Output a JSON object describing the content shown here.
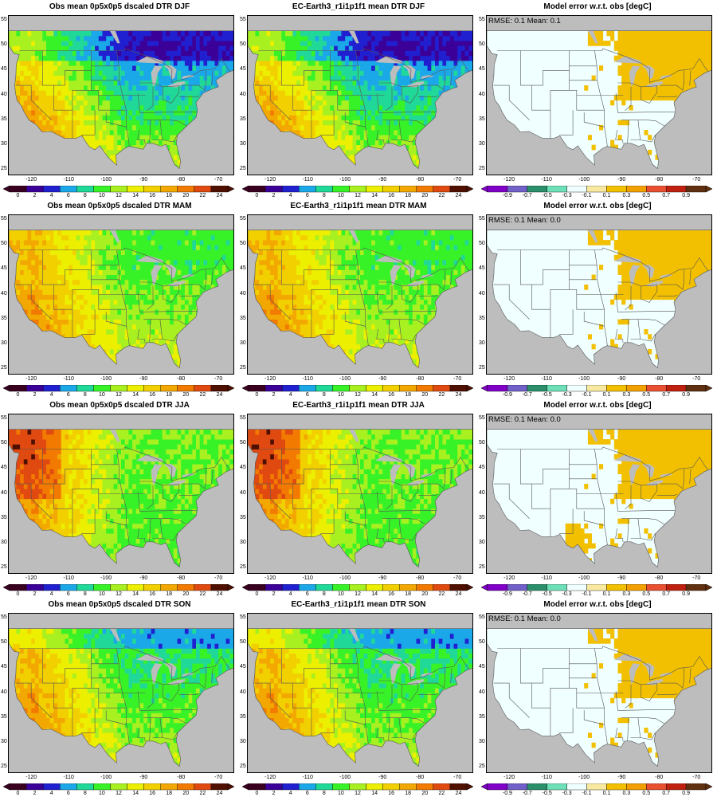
{
  "colors": {
    "ocean": "#bdbdbd",
    "border": "#555555",
    "obs_scale": [
      "#3a0020",
      "#3b0098",
      "#2020d0",
      "#1ba8e8",
      "#20d898",
      "#38f228",
      "#a8f020",
      "#ecf000",
      "#f2d000",
      "#f2a800",
      "#f27a00",
      "#e04a10",
      "#501000"
    ],
    "err_scale": [
      "#8000c8",
      "#7060c8",
      "#2a8f6a",
      "#6ee0b8",
      "#f0ffff",
      "#f8e8a0",
      "#f2c000",
      "#f2a000",
      "#e85030",
      "#c02010",
      "#603010"
    ]
  },
  "obs_colorbar": {
    "labels": [
      "0",
      "2",
      "4",
      "6",
      "8",
      "10",
      "12",
      "14",
      "16",
      "18",
      "20",
      "22",
      "24"
    ]
  },
  "err_colorbar": {
    "labels": [
      "-0.9",
      "-0.7",
      "-0.5",
      "-0.3",
      "-0.1",
      "0.1",
      "0.3",
      "0.5",
      "0.7",
      "0.9"
    ]
  },
  "axes": {
    "lat_ticks": [
      "55",
      "50",
      "45",
      "40",
      "35",
      "30",
      "25"
    ],
    "lon_ticks": [
      "-120",
      "-110",
      "-100",
      "-90",
      "-80",
      "-70"
    ]
  },
  "rows": [
    {
      "season": "DJF",
      "obs_title": "Obs mean 0p5x0p5 dscaled DTR DJF",
      "model_title": "EC-Earth3_r1i1p1f1 mean DTR DJF",
      "err_title": "Model error w.r.t. obs [degC]",
      "err_stats": "RMSE: 0.1  Mean: 0.1"
    },
    {
      "season": "MAM",
      "obs_title": "Obs mean 0p5x0p5 dscaled DTR MAM",
      "model_title": "EC-Earth3_r1i1p1f1 mean DTR MAM",
      "err_title": "Model error w.r.t. obs [degC]",
      "err_stats": "RMSE: 0.1  Mean: 0.0"
    },
    {
      "season": "JJA",
      "obs_title": "Obs mean 0p5x0p5 dscaled DTR JJA",
      "model_title": "EC-Earth3_r1i1p1f1 mean DTR JJA",
      "err_title": "Model error w.r.t. obs [degC]",
      "err_stats": "RMSE: 0.1  Mean: 0.0"
    },
    {
      "season": "SON",
      "obs_title": "Obs mean 0p5x0p5 dscaled DTR SON",
      "model_title": "EC-Earth3_r1i1p1f1 mean DTR SON",
      "err_title": "Model error w.r.t. obs [degC]",
      "err_stats": "RMSE: 0.1  Mean: 0.0"
    }
  ]
}
